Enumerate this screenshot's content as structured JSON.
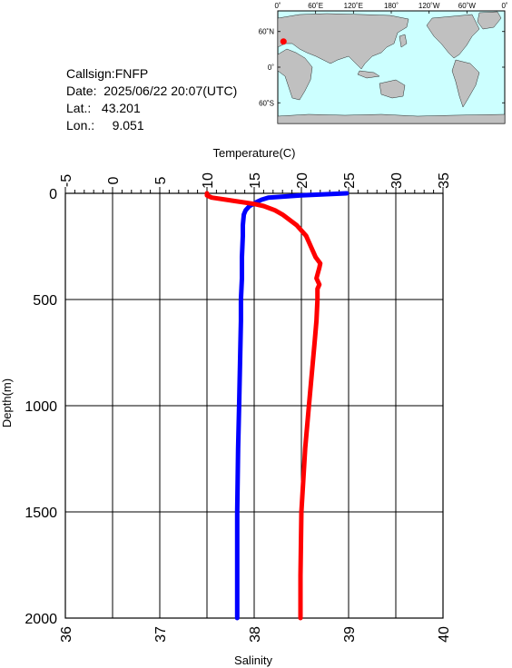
{
  "info": {
    "callsign": "Callsign:FNFP",
    "date": "Date:  2025/06/22 20:07(UTC)",
    "lat": "Lat.:   43.201",
    "lon": "Lon.:     9.051"
  },
  "map": {
    "lon_labels": [
      "0˚",
      "60˚E",
      "120˚E",
      "180˚",
      "120˚W",
      "60˚W",
      "0˚"
    ],
    "lat_labels": [
      "60˚N",
      "0˚",
      "60˚S"
    ],
    "float_position": {
      "lat": 43.201,
      "lon": 9.051
    },
    "colors": {
      "ocean": "#ccffff",
      "land": "#c0c0c0",
      "marker": "#ff0000"
    }
  },
  "chart_data": {
    "type": "line",
    "top_axis": {
      "label": "Temperature(C)",
      "range": [
        -5,
        35
      ],
      "ticks": [
        "-5",
        "0",
        "5",
        "10",
        "15",
        "20",
        "25",
        "30",
        "35"
      ]
    },
    "bottom_axis": {
      "label": "Salinity",
      "range": [
        36,
        40
      ],
      "ticks": [
        "36",
        "37",
        "38",
        "39",
        "40"
      ]
    },
    "left_axis": {
      "label": "Depth(m)",
      "range": [
        0,
        2000
      ],
      "inverted": true,
      "ticks": [
        "0",
        "500",
        "1000",
        "1500",
        "2000"
      ]
    },
    "grid": true,
    "series": [
      {
        "quantity": "temperature",
        "axis": "top",
        "color": "#0000ff",
        "depth": [
          0,
          10,
          20,
          30,
          40,
          50,
          60,
          80,
          100,
          150,
          200,
          300,
          400,
          500,
          600,
          800,
          1000,
          1200,
          1500,
          1800,
          2000
        ],
        "values": [
          24.8,
          20.0,
          16.5,
          15.8,
          15.3,
          14.9,
          14.5,
          14.1,
          13.9,
          13.8,
          13.8,
          13.7,
          13.7,
          13.6,
          13.6,
          13.5,
          13.4,
          13.3,
          13.2,
          13.2,
          13.2
        ]
      },
      {
        "quantity": "salinity",
        "axis": "bottom",
        "color": "#ff0000",
        "depth": [
          0,
          10,
          20,
          30,
          40,
          50,
          60,
          80,
          100,
          150,
          200,
          250,
          300,
          330,
          350,
          400,
          430,
          450,
          500,
          600,
          700,
          800,
          900,
          1000,
          1200,
          1500,
          1800,
          2000
        ],
        "values": [
          37.5,
          37.5,
          37.55,
          37.7,
          37.85,
          38.0,
          38.1,
          38.22,
          38.3,
          38.45,
          38.55,
          38.6,
          38.65,
          38.7,
          38.69,
          38.66,
          38.69,
          38.67,
          38.67,
          38.66,
          38.64,
          38.62,
          38.6,
          38.58,
          38.54,
          38.5,
          38.49,
          38.49
        ]
      }
    ]
  }
}
